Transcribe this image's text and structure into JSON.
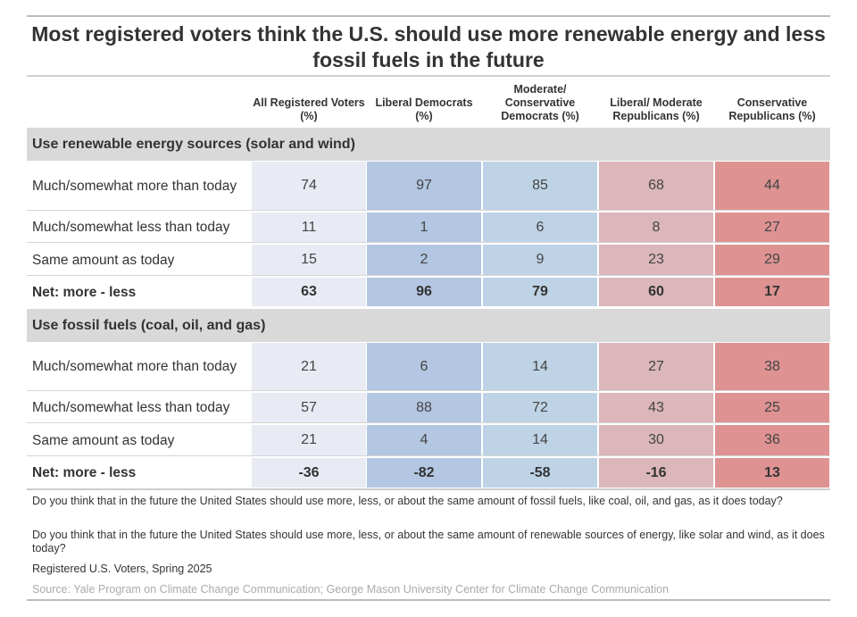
{
  "title": "Most registered voters think the U.S. should use more renewable energy and less fossil fuels in the future",
  "columns": [
    "All Registered Voters (%)",
    "Liberal Democrats (%)",
    "Moderate/ Conservative Democrats (%)",
    "Liberal/ Moderate Republicans (%)",
    "Conservative Republicans (%)"
  ],
  "column_colors": [
    "#e8ebf4",
    "#b3c6e2",
    "#bed4e6",
    "#dbb6bb",
    "#de9292"
  ],
  "sections": [
    {
      "heading": "Use renewable energy sources (solar and wind)",
      "rows": [
        {
          "label": "Much/somewhat more than today",
          "values": [
            "74",
            "97",
            "85",
            "68",
            "44"
          ]
        },
        {
          "label": "Much/somewhat less than today",
          "values": [
            "11",
            "1",
            "6",
            "8",
            "27"
          ]
        },
        {
          "label": "Same amount as today",
          "values": [
            "15",
            "2",
            "9",
            "23",
            "29"
          ]
        },
        {
          "label": "Net: more - less",
          "values": [
            "63",
            "96",
            "79",
            "60",
            "17"
          ],
          "net": true
        }
      ]
    },
    {
      "heading": "Use fossil fuels (coal, oil, and gas)",
      "rows": [
        {
          "label": "Much/somewhat more than today",
          "values": [
            "21",
            "6",
            "14",
            "27",
            "38"
          ]
        },
        {
          "label": "Much/somewhat less than today",
          "values": [
            "57",
            "88",
            "72",
            "43",
            "25"
          ]
        },
        {
          "label": "Same amount as today",
          "values": [
            "21",
            "4",
            "14",
            "30",
            "36"
          ]
        },
        {
          "label": "Net: more - less",
          "values": [
            "-36",
            "-82",
            "-58",
            "-16",
            "13"
          ],
          "net": true
        }
      ]
    }
  ],
  "notes": [
    "Do you think that in the future the United States should use more, less, or about the same amount of fossil fuels, like coal, oil, and gas, as it does today?",
    "Do you think that in the future the United States should use more, less, or about the same amount of renewable sources of energy, like solar and wind, as it does today?",
    "Registered U.S. Voters, Spring 2025"
  ],
  "source": "Source: Yale Program on Climate Change Communication; George Mason University Center for Climate Change Communication",
  "chart_data": {
    "type": "table",
    "title": "Most registered voters think the U.S. should use more renewable energy and less fossil fuels in the future",
    "columns": [
      "All Registered Voters (%)",
      "Liberal Democrats (%)",
      "Moderate/ Conservative Democrats (%)",
      "Liberal/ Moderate Republicans (%)",
      "Conservative Republicans (%)"
    ],
    "tables": [
      {
        "heading": "Use renewable energy sources (solar and wind)",
        "rows": [
          {
            "label": "Much/somewhat more than today",
            "values": [
              74,
              97,
              85,
              68,
              44
            ]
          },
          {
            "label": "Much/somewhat less than today",
            "values": [
              11,
              1,
              6,
              8,
              27
            ]
          },
          {
            "label": "Same amount as today",
            "values": [
              15,
              2,
              9,
              23,
              29
            ]
          },
          {
            "label": "Net: more - less",
            "values": [
              63,
              96,
              79,
              60,
              17
            ]
          }
        ]
      },
      {
        "heading": "Use fossil fuels (coal, oil, and gas)",
        "rows": [
          {
            "label": "Much/somewhat more than today",
            "values": [
              21,
              6,
              14,
              27,
              38
            ]
          },
          {
            "label": "Much/somewhat less than today",
            "values": [
              57,
              88,
              72,
              43,
              25
            ]
          },
          {
            "label": "Same amount as today",
            "values": [
              21,
              4,
              14,
              30,
              36
            ]
          },
          {
            "label": "Net: more - less",
            "values": [
              -36,
              -82,
              -58,
              -16,
              13
            ]
          }
        ]
      }
    ]
  }
}
